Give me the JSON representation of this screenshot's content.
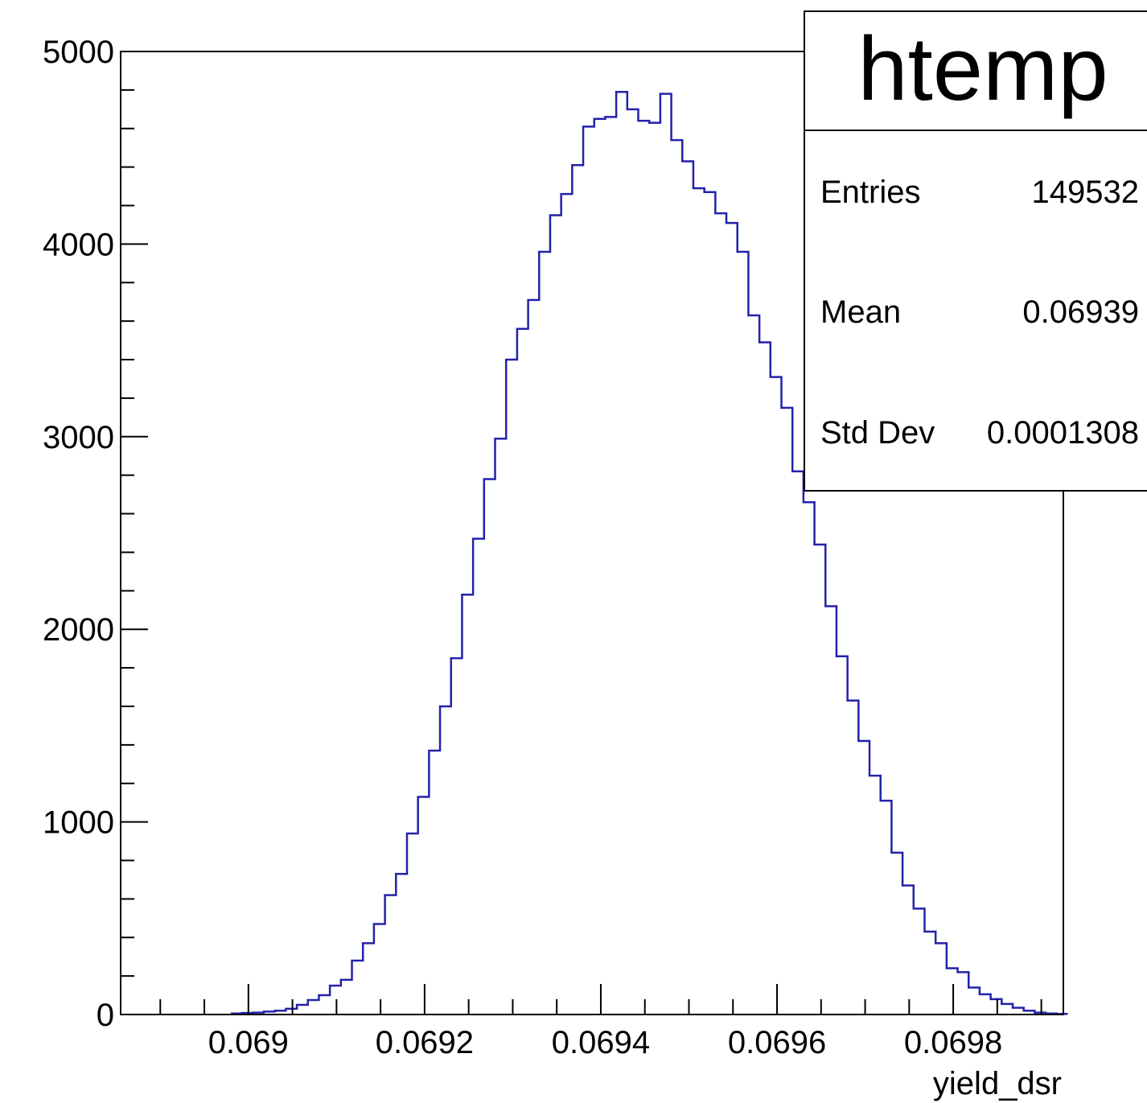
{
  "chart_data": {
    "type": "histogram",
    "title": "",
    "xlabel": "yield_dsr",
    "ylabel": "",
    "xlim": [
      0.068855,
      0.069925
    ],
    "ylim": [
      0,
      5000
    ],
    "xticks": [
      {
        "value": 0.069,
        "label": "0.069"
      },
      {
        "value": 0.0692,
        "label": "0.0692"
      },
      {
        "value": 0.0694,
        "label": "0.0694"
      },
      {
        "value": 0.0696,
        "label": "0.0696"
      },
      {
        "value": 0.0698,
        "label": "0.0698"
      }
    ],
    "yticks": [
      {
        "value": 0,
        "label": "0"
      },
      {
        "value": 1000,
        "label": "1000"
      },
      {
        "value": 2000,
        "label": "2000"
      },
      {
        "value": 3000,
        "label": "3000"
      },
      {
        "value": 4000,
        "label": "4000"
      },
      {
        "value": 5000,
        "label": "5000"
      }
    ],
    "bin_width": 1.25e-05,
    "bin_edges_start": 0.06898,
    "counts": [
      5,
      8,
      10,
      15,
      20,
      30,
      50,
      75,
      100,
      150,
      180,
      280,
      370,
      470,
      620,
      730,
      940,
      1130,
      1370,
      1600,
      1850,
      2180,
      2470,
      2780,
      2990,
      3400,
      3560,
      3710,
      3960,
      4150,
      4260,
      4410,
      4610,
      4650,
      4660,
      4790,
      4700,
      4640,
      4630,
      4780,
      4540,
      4430,
      4290,
      4270,
      4160,
      4110,
      3960,
      3630,
      3490,
      3310,
      3150,
      2820,
      2660,
      2440,
      2120,
      1860,
      1630,
      1420,
      1240,
      1110,
      840,
      670,
      550,
      430,
      370,
      240,
      220,
      140,
      105,
      80,
      55,
      35,
      20,
      10,
      5,
      3
    ],
    "line_color": "#2222aa"
  },
  "stats_box": {
    "title": "htemp",
    "entries_label": "Entries",
    "entries_value": "149532",
    "mean_label": "Mean",
    "mean_value": "0.06939",
    "stddev_label": "Std Dev",
    "stddev_value": "0.0001308"
  }
}
